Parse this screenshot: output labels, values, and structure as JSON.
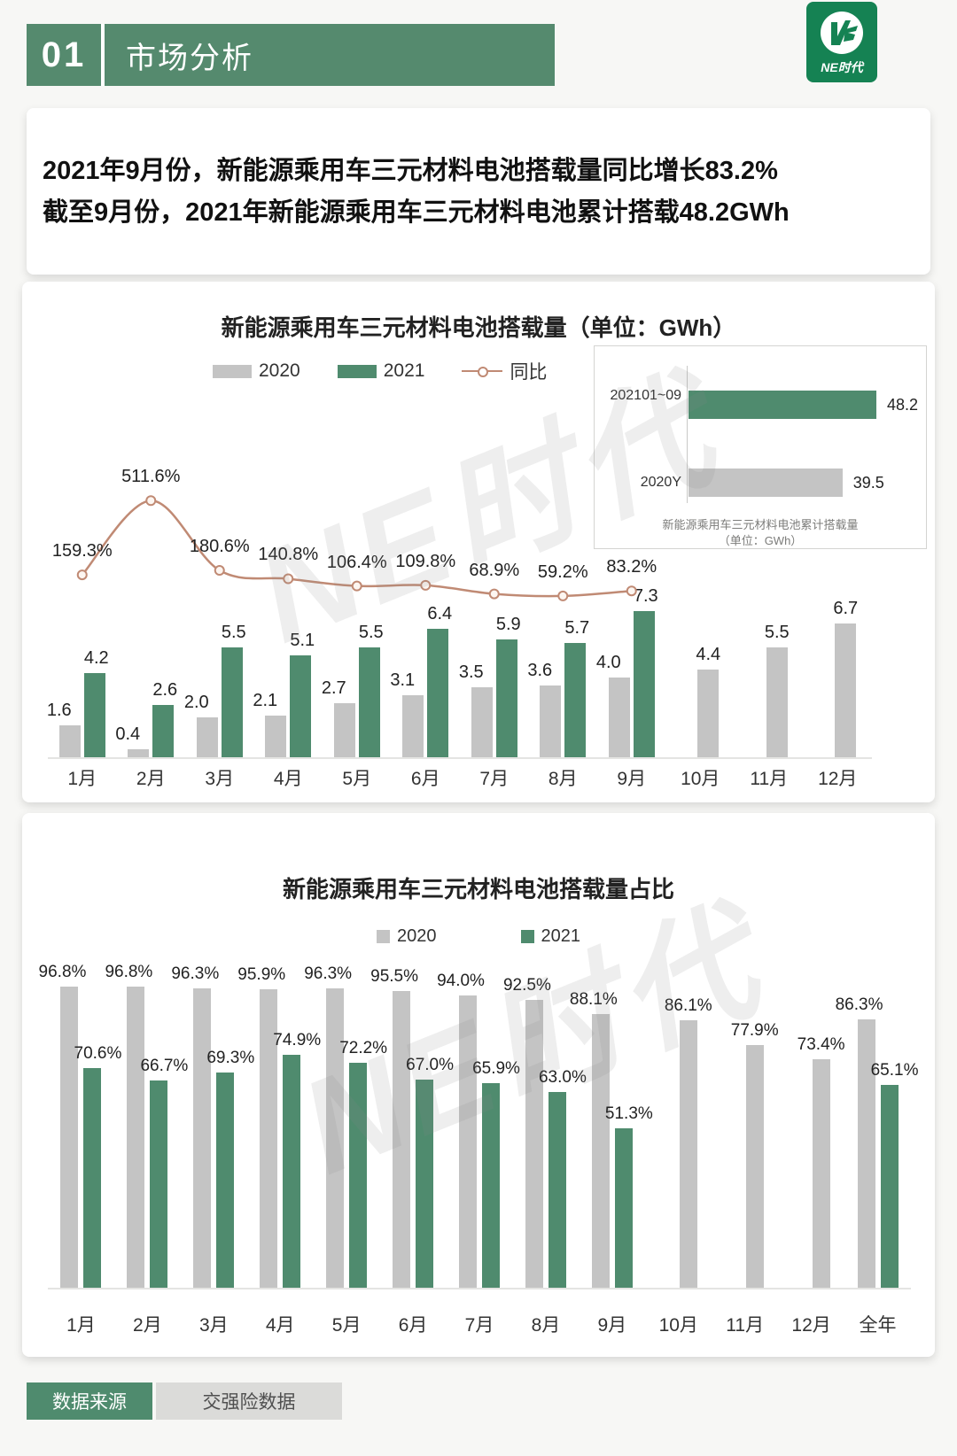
{
  "page": {
    "section_number": "01",
    "section_title": "市场分析",
    "logo_text": "NE时代",
    "watermark": "NE时代",
    "headline_line1": "2021年9月份，新能源乘用车三元材料电池搭载量同比增长83.2%",
    "headline_line2": "截至9月份，2021年新能源乘用车三元材料电池累计搭载48.2GWh"
  },
  "colors": {
    "green": "#4f8b6e",
    "gray": "#c4c4c4",
    "line": "#c08a74",
    "header_green": "#558a6e",
    "logo_green": "#158253",
    "footer_gray": "#dbdbd9"
  },
  "footer": {
    "source_label": "数据来源",
    "source_value": "交强险数据"
  },
  "chart_data": [
    {
      "id": "monthly-volume",
      "type": "bar+line",
      "title": "新能源乘用车三元材料电池搭载量（单位：GWh）",
      "unit": "GWh",
      "categories": [
        "1月",
        "2月",
        "3月",
        "4月",
        "5月",
        "6月",
        "7月",
        "8月",
        "9月",
        "10月",
        "11月",
        "12月"
      ],
      "series": [
        {
          "name": "2020",
          "swatch": "gray-bar",
          "values": [
            1.6,
            0.4,
            2.0,
            2.1,
            2.7,
            3.1,
            3.5,
            3.6,
            4.0,
            4.4,
            5.5,
            6.7
          ]
        },
        {
          "name": "2021",
          "swatch": "green-bar",
          "values": [
            4.2,
            2.6,
            5.5,
            5.1,
            5.5,
            6.4,
            5.9,
            5.7,
            7.3,
            null,
            null,
            null
          ]
        }
      ],
      "line_series": {
        "name": "同比",
        "unit": "%",
        "values": [
          159.3,
          511.6,
          180.6,
          140.8,
          106.4,
          109.8,
          68.9,
          59.2,
          83.2
        ]
      },
      "inset": {
        "caption1": "新能源乘用车三元材料电池累计搭载量",
        "caption2": "（单位：GWh）",
        "rows": [
          {
            "label": "202101~09",
            "value": 48.2,
            "swatch": "green-bar"
          },
          {
            "label": "2020Y",
            "value": 39.5,
            "swatch": "gray-bar"
          }
        ]
      }
    },
    {
      "id": "monthly-share",
      "type": "bar",
      "title": "新能源乘用车三元材料电池搭载量占比",
      "unit": "%",
      "categories": [
        "1月",
        "2月",
        "3月",
        "4月",
        "5月",
        "6月",
        "7月",
        "8月",
        "9月",
        "10月",
        "11月",
        "12月",
        "全年"
      ],
      "series": [
        {
          "name": "2020",
          "swatch": "gray-bar",
          "values": [
            96.8,
            96.8,
            96.3,
            95.9,
            96.3,
            95.5,
            94.0,
            92.5,
            88.1,
            86.1,
            77.9,
            73.4,
            86.3
          ]
        },
        {
          "name": "2021",
          "swatch": "green-bar",
          "values": [
            70.6,
            66.7,
            69.3,
            74.9,
            72.2,
            67.0,
            65.9,
            63.0,
            51.3,
            null,
            null,
            null,
            65.1
          ]
        }
      ]
    }
  ]
}
